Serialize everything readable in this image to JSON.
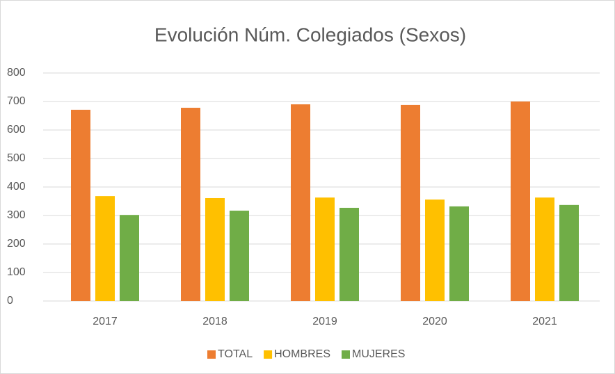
{
  "chart_data": {
    "type": "bar",
    "title": "Evolución Núm. Colegiados (Sexos)",
    "categories": [
      "2017",
      "2018",
      "2019",
      "2020",
      "2021"
    ],
    "series": [
      {
        "name": "TOTAL",
        "color": "#ed7d31",
        "values": [
          671,
          678,
          690,
          688,
          700
        ]
      },
      {
        "name": "HOMBRES",
        "color": "#ffc000",
        "values": [
          368,
          361,
          363,
          356,
          363
        ]
      },
      {
        "name": "MUJERES",
        "color": "#70ad47",
        "values": [
          302,
          317,
          327,
          332,
          337
        ]
      }
    ],
    "ylim": [
      0,
      800
    ],
    "yticks": [
      0,
      100,
      200,
      300,
      400,
      500,
      600,
      700,
      800
    ],
    "grid": true,
    "legend": "bottom"
  }
}
